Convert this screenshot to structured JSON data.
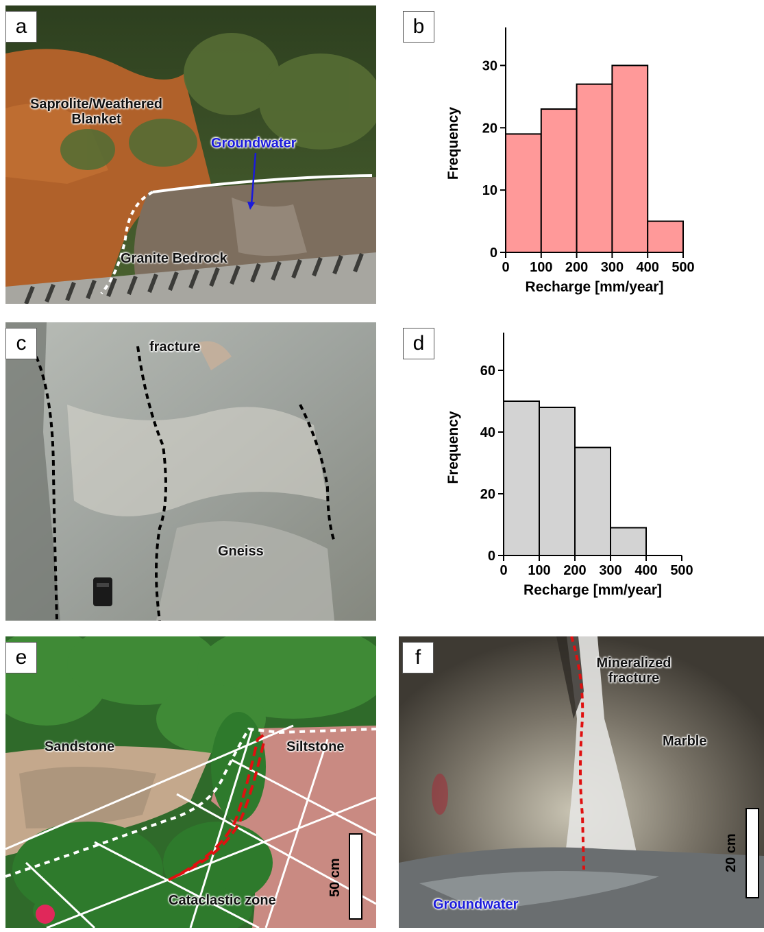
{
  "panels": {
    "a": {
      "label": "a",
      "annotations": {
        "saprolite": "Saprolite/Weathered\nBlanket",
        "groundwater": "Groundwater",
        "granite": "Granite Bedrock"
      },
      "colors": {
        "soil": "#b4622a",
        "vegetation": "#3e5a28",
        "rock": "#7d6e5e",
        "groundwater": "#1a1adb"
      }
    },
    "c": {
      "label": "c",
      "annotations": {
        "fracture": "fracture",
        "gneiss": "Gneiss"
      },
      "colors": {
        "rock": "#9ea39e"
      }
    },
    "e": {
      "label": "e",
      "annotations": {
        "sandstone": "Sandstone",
        "siltstone": "Siltstone",
        "cataclastic": "Cataclastic zone",
        "scale": "50 cm"
      },
      "colors": {
        "vegetation": "#2f6a2a",
        "siltstone": "#c98a82",
        "fault": "#e01010"
      }
    },
    "f": {
      "label": "f",
      "annotations": {
        "mineralized": "Mineralized\nfracture",
        "marble": "Marble",
        "groundwater": "Groundwater",
        "scale": "20 cm"
      },
      "colors": {
        "rock": "#7a7468",
        "fracture": "#e01010",
        "groundwater": "#1a1adb"
      }
    }
  },
  "chart_data": [
    {
      "panel": "b",
      "label": "b",
      "type": "bar",
      "title": "",
      "xlabel": "Recharge [mm/year]",
      "ylabel": "Frequency",
      "bins": [
        [
          0,
          100
        ],
        [
          100,
          200
        ],
        [
          200,
          300
        ],
        [
          300,
          400
        ],
        [
          400,
          500
        ]
      ],
      "values": [
        19,
        23,
        27,
        30,
        5
      ],
      "xlim": [
        0,
        500
      ],
      "ylim": [
        0,
        35
      ],
      "xticks": [
        0,
        100,
        200,
        300,
        400,
        500
      ],
      "yticks": [
        0,
        10,
        20,
        30
      ],
      "color": "#ff9999",
      "grid": false
    },
    {
      "panel": "d",
      "label": "d",
      "type": "bar",
      "title": "",
      "xlabel": "Recharge [mm/year]",
      "ylabel": "Frequency",
      "bins": [
        [
          0,
          100
        ],
        [
          100,
          200
        ],
        [
          200,
          300
        ],
        [
          300,
          400
        ]
      ],
      "values": [
        50,
        48,
        35,
        9
      ],
      "xlim": [
        0,
        500
      ],
      "ylim": [
        0,
        70
      ],
      "xticks": [
        0,
        100,
        200,
        300,
        400,
        500
      ],
      "yticks": [
        0,
        20,
        40,
        60
      ],
      "color": "#d3d3d3",
      "grid": false
    }
  ]
}
